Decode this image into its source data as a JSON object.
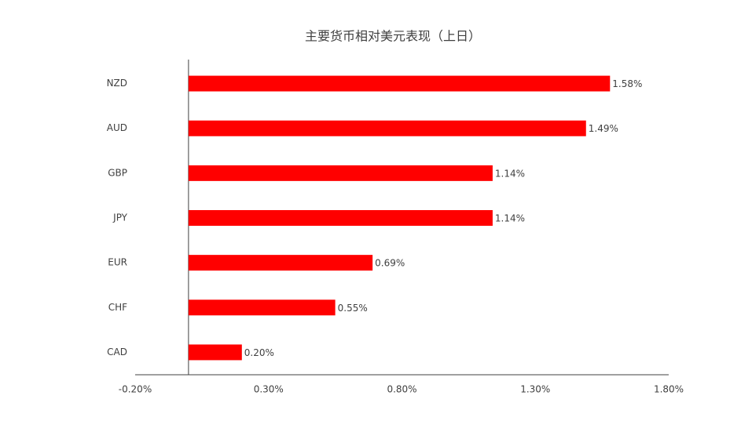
{
  "chart_data": {
    "type": "hbar",
    "title": "主要货币相对美元表现（上日）",
    "categories": [
      "NZD",
      "AUD",
      "GBP",
      "JPY",
      "EUR",
      "CHF",
      "CAD"
    ],
    "values": [
      1.58,
      1.49,
      1.14,
      1.14,
      0.69,
      0.55,
      0.2
    ],
    "value_labels": [
      "1.58%",
      "1.49%",
      "1.14%",
      "1.14%",
      "0.69%",
      "0.55%",
      "0.20%"
    ],
    "color": "#ff0000",
    "xlim": [
      -0.2,
      1.8
    ],
    "xticks": [
      {
        "value": -0.2,
        "label": "-0.20%"
      },
      {
        "value": 0.3,
        "label": "0.30%"
      },
      {
        "value": 0.8,
        "label": "0.80%"
      },
      {
        "value": 1.3,
        "label": "1.30%"
      },
      {
        "value": 1.8,
        "label": "1.80%"
      }
    ],
    "grid": false
  }
}
